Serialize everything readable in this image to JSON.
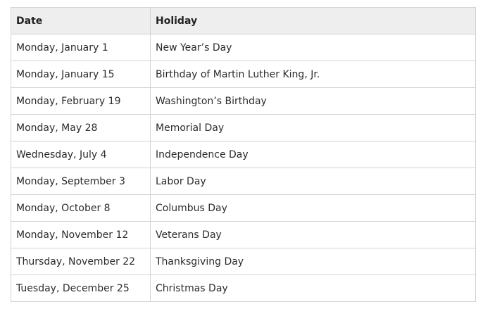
{
  "table": {
    "headers": [
      "Date",
      "Holiday"
    ],
    "rows": [
      [
        "Monday, January 1",
        "New Year’s Day"
      ],
      [
        "Monday, January 15",
        "Birthday of Martin Luther King, Jr."
      ],
      [
        "Monday, February 19",
        "Washington’s Birthday"
      ],
      [
        "Monday, May 28",
        "Memorial Day"
      ],
      [
        "Wednesday, July 4",
        "Independence Day"
      ],
      [
        "Monday, September 3",
        "Labor Day"
      ],
      [
        "Monday, October 8",
        "Columbus Day"
      ],
      [
        "Monday, November 12",
        "Veterans Day"
      ],
      [
        "Thursday, November 22",
        "Thanksgiving Day"
      ],
      [
        "Tuesday, December 25",
        "Christmas Day"
      ]
    ]
  },
  "colors": {
    "header_bg": "#eeeeee",
    "border": "#d3d3d3",
    "text": "#2b2b2b"
  }
}
